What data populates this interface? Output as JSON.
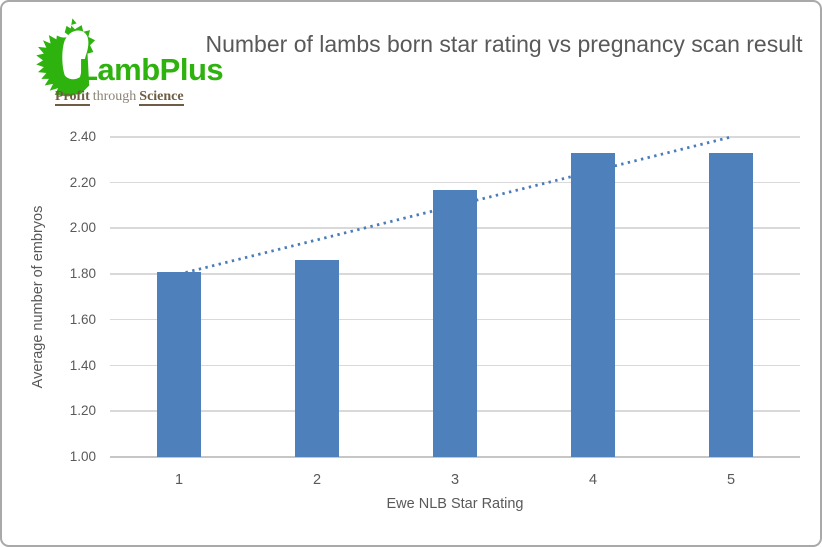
{
  "logo": {
    "name": "LambPlus",
    "tagline": {
      "profit": "Profit",
      "through": "through",
      "science": "Science"
    },
    "colors": {
      "green": "#2db20e",
      "tagline_accent": "#6f5c44",
      "tagline_muted": "#8d8373"
    }
  },
  "chart_data": {
    "type": "bar",
    "title": "Number of lambs born star rating vs pregnancy scan result",
    "categories": [
      "1",
      "2",
      "3",
      "4",
      "5"
    ],
    "values": [
      1.81,
      1.86,
      2.17,
      2.33,
      2.33
    ],
    "xlabel": "Ewe NLB Star Rating",
    "ylabel": "Average number of embryos",
    "ylim": [
      1.0,
      2.4
    ],
    "ytick_step": 0.2,
    "ytick_labels": [
      "1.00",
      "1.20",
      "1.40",
      "1.60",
      "1.80",
      "2.00",
      "2.20",
      "2.40"
    ],
    "grid": true,
    "legend": "none",
    "bar_color": "#4e80bc",
    "gridline_color": "#d9d9d9",
    "axis_line_color": "#c6c6c6",
    "text_color": "#595959",
    "trendline": {
      "type": "linear",
      "style": "dotted",
      "color": "#4a7cba",
      "start_value": 1.8,
      "end_value": 2.4
    }
  }
}
